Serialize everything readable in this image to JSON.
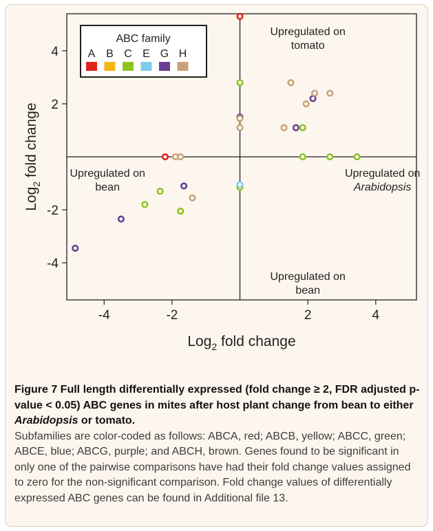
{
  "chart_data": {
    "type": "scatter",
    "xlabel": "Log",
    "ylabel": "Log",
    "label_subscript": "2",
    "label_suffix": " fold change",
    "xlim": [
      -5.1,
      5.2
    ],
    "ylim": [
      -5.4,
      5.4
    ],
    "x_ticks": [
      -4,
      -2,
      2,
      4
    ],
    "x_tick_labels": [
      "-4",
      "-2",
      "2",
      "4"
    ],
    "y_ticks": [
      -4,
      -2,
      2,
      4
    ],
    "y_tick_labels": [
      "-4",
      "-2",
      "2",
      "4"
    ],
    "grid": false,
    "legend": {
      "title": "ABC family",
      "placement": "top-left",
      "entries": [
        {
          "label": "A",
          "color": "#e2231a"
        },
        {
          "label": "B",
          "color": "#f7b512"
        },
        {
          "label": "C",
          "color": "#8dc21f"
        },
        {
          "label": "E",
          "color": "#7ccde8"
        },
        {
          "label": "G",
          "color": "#6a3f93"
        },
        {
          "label": "H",
          "color": "#c8a27a"
        }
      ]
    },
    "annotations": [
      {
        "text": "Upregulated on",
        "text2": "tomato",
        "x": 2.0,
        "y": 4.6,
        "italic2": false
      },
      {
        "text": "Upregulated on",
        "text2": "bean",
        "x": -3.9,
        "y": -0.75,
        "italic2": false
      },
      {
        "text": "Upregulated on",
        "text2": "Arabidopsis",
        "x": 4.2,
        "y": -0.75,
        "italic2": true
      },
      {
        "text": "Upregulated on",
        "text2": "bean",
        "x": 2.0,
        "y": -4.65,
        "italic2": false
      }
    ],
    "series": [
      {
        "name": "A",
        "color": "#e2231a",
        "points": [
          [
            0,
            5.3
          ],
          [
            -2.2,
            0
          ]
        ]
      },
      {
        "name": "C",
        "color": "#8dc21f",
        "points": [
          [
            0,
            2.8
          ],
          [
            1.85,
            1.1
          ],
          [
            1.85,
            0
          ],
          [
            2.65,
            0
          ],
          [
            3.45,
            0
          ],
          [
            0,
            -1.15
          ],
          [
            -2.35,
            -1.3
          ],
          [
            -2.8,
            -1.8
          ],
          [
            -1.75,
            -2.05
          ]
        ]
      },
      {
        "name": "E",
        "color": "#7ccde8",
        "points": [
          [
            0,
            -1.05
          ]
        ]
      },
      {
        "name": "G",
        "color": "#6a3f93",
        "points": [
          [
            2.15,
            2.2
          ],
          [
            0,
            1.5
          ],
          [
            1.65,
            1.1
          ],
          [
            -1.65,
            -1.1
          ],
          [
            -3.5,
            -2.35
          ],
          [
            -4.85,
            -3.45
          ]
        ]
      },
      {
        "name": "H",
        "color": "#c8a27a",
        "points": [
          [
            1.5,
            2.8
          ],
          [
            2.2,
            2.4
          ],
          [
            2.65,
            2.4
          ],
          [
            1.95,
            2.0
          ],
          [
            0,
            1.45
          ],
          [
            0,
            1.1
          ],
          [
            1.3,
            1.1
          ],
          [
            -1.9,
            0
          ],
          [
            -1.75,
            0
          ],
          [
            -1.4,
            -1.55
          ]
        ]
      }
    ]
  },
  "caption": {
    "label": "Figure 7",
    "title_part1": " Full length differentially expressed (fold change ≥ 2, FDR adjusted p-value < 0.05) ABC genes in mites after host plant change from bean to either ",
    "title_italic": "Arabidopsis",
    "title_part2": " or tomato.",
    "body": "Subfamilies are color-coded as follows: ABCA, red; ABCB, yellow; ABCC, green; ABCE, blue; ABCG, purple; and ABCH, brown. Genes found to be significant in only one of the pairwise comparisons have had their fold change values assigned to zero for the non-significant comparison. Fold change values of differentially expressed ABC genes can be found in Additional file 13."
  }
}
